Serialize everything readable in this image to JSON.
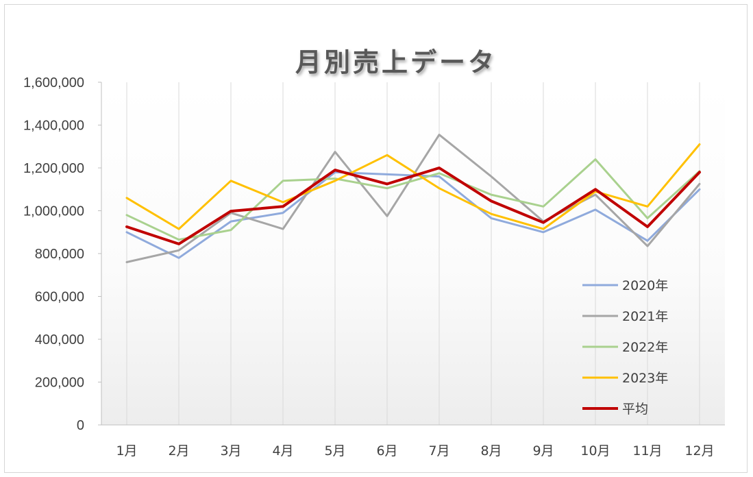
{
  "chart_data": {
    "type": "line",
    "title": "月別売上データ",
    "xlabel": "",
    "ylabel": "",
    "ylim": [
      0,
      1600000
    ],
    "yticks": [
      0,
      200000,
      400000,
      600000,
      800000,
      1000000,
      1200000,
      1400000,
      1600000
    ],
    "ytick_labels": [
      "0",
      "200,000",
      "400,000",
      "600,000",
      "800,000",
      "1,000,000",
      "1,200,000",
      "1,400,000",
      "1,600,000"
    ],
    "categories": [
      "1月",
      "2月",
      "3月",
      "4月",
      "5月",
      "6月",
      "7月",
      "8月",
      "9月",
      "10月",
      "11月",
      "12月"
    ],
    "grid": "vertical",
    "legend_position": "bottom-right",
    "series": [
      {
        "name": "2020年",
        "color": "#8faadc",
        "width": 3,
        "values": [
          900000,
          780000,
          950000,
          990000,
          1180000,
          1170000,
          1160000,
          965000,
          900000,
          1005000,
          860000,
          1100000
        ]
      },
      {
        "name": "2021年",
        "color": "#a6a6a6",
        "width": 3,
        "values": [
          760000,
          815000,
          990000,
          915000,
          1275000,
          975000,
          1355000,
          1160000,
          950000,
          1075000,
          835000,
          1125000
        ]
      },
      {
        "name": "2022年",
        "color": "#a9d18e",
        "width": 3,
        "values": [
          980000,
          865000,
          910000,
          1140000,
          1150000,
          1105000,
          1175000,
          1075000,
          1020000,
          1240000,
          965000,
          1185000
        ]
      },
      {
        "name": "2023年",
        "color": "#ffc000",
        "width": 3,
        "values": [
          1060000,
          915000,
          1140000,
          1040000,
          1140000,
          1260000,
          1105000,
          985000,
          915000,
          1090000,
          1020000,
          1310000
        ]
      },
      {
        "name": "平均",
        "color": "#c00000",
        "width": 4,
        "values": [
          925000,
          845000,
          998000,
          1020000,
          1190000,
          1125000,
          1200000,
          1045000,
          945000,
          1100000,
          925000,
          1180000
        ]
      }
    ]
  }
}
